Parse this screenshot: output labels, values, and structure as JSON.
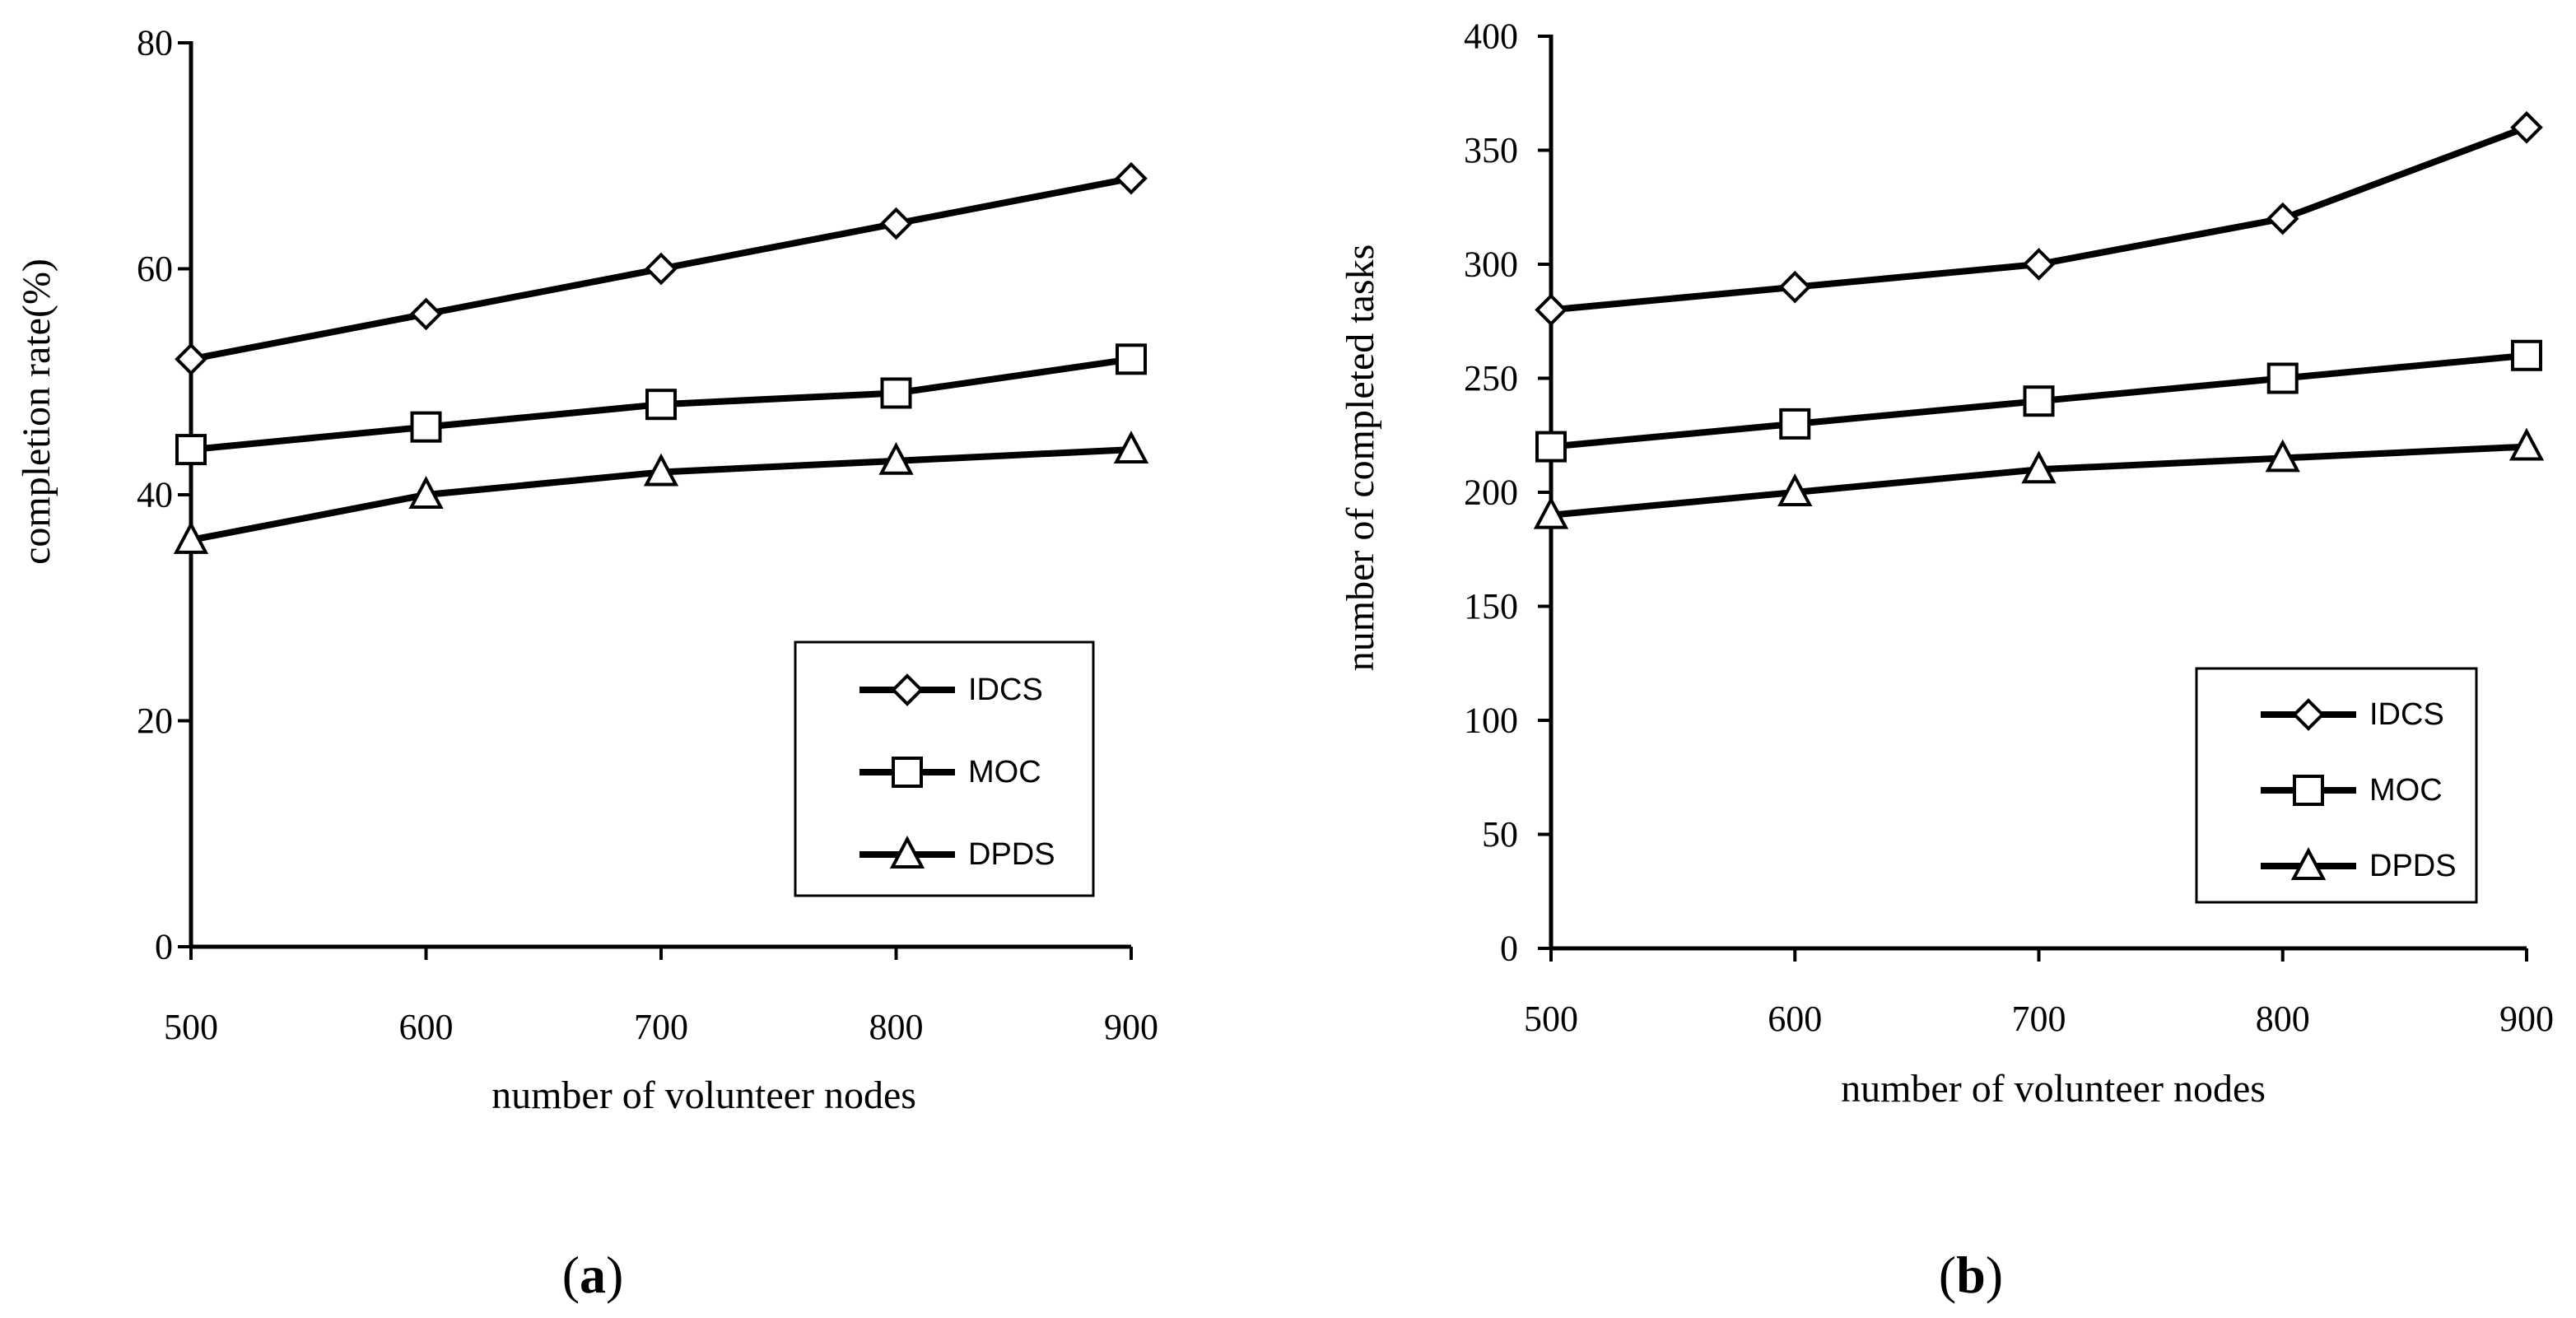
{
  "chart_data": [
    {
      "type": "line",
      "panel_label_parts": [
        "(",
        "a",
        ")"
      ],
      "x": [
        500,
        600,
        700,
        800,
        900
      ],
      "xlabel": "number of volunteer nodes",
      "ylabel": "completion rate(%)",
      "xlim": [
        500,
        900
      ],
      "ylim": [
        0,
        80
      ],
      "yticks": [
        0,
        20,
        40,
        60,
        80
      ],
      "xticks": [
        500,
        600,
        700,
        800,
        900
      ],
      "grid": false,
      "legend_position": "bottom-right",
      "series": [
        {
          "name": "IDCS",
          "marker": "diamond",
          "values": [
            52,
            56,
            60,
            64,
            68
          ]
        },
        {
          "name": "MOC",
          "marker": "square",
          "values": [
            44,
            46,
            48,
            49,
            52
          ]
        },
        {
          "name": "DPDS",
          "marker": "triangle",
          "values": [
            36,
            40,
            42,
            43,
            44
          ]
        }
      ]
    },
    {
      "type": "line",
      "panel_label_parts": [
        "(",
        "b",
        ")"
      ],
      "x": [
        500,
        600,
        700,
        800,
        900
      ],
      "xlabel": "number of volunteer nodes",
      "ylabel": "number of completed tasks",
      "xlim": [
        500,
        900
      ],
      "ylim": [
        0,
        400
      ],
      "yticks": [
        0,
        50,
        100,
        150,
        200,
        250,
        300,
        350,
        400
      ],
      "xticks": [
        500,
        600,
        700,
        800,
        900
      ],
      "grid": false,
      "legend_position": "bottom-right",
      "series": [
        {
          "name": "IDCS",
          "marker": "diamond",
          "values": [
            280,
            290,
            300,
            320,
            360
          ]
        },
        {
          "name": "MOC",
          "marker": "square",
          "values": [
            220,
            230,
            240,
            250,
            260
          ]
        },
        {
          "name": "DPDS",
          "marker": "triangle",
          "values": [
            190,
            200,
            210,
            215,
            220
          ]
        }
      ]
    }
  ]
}
